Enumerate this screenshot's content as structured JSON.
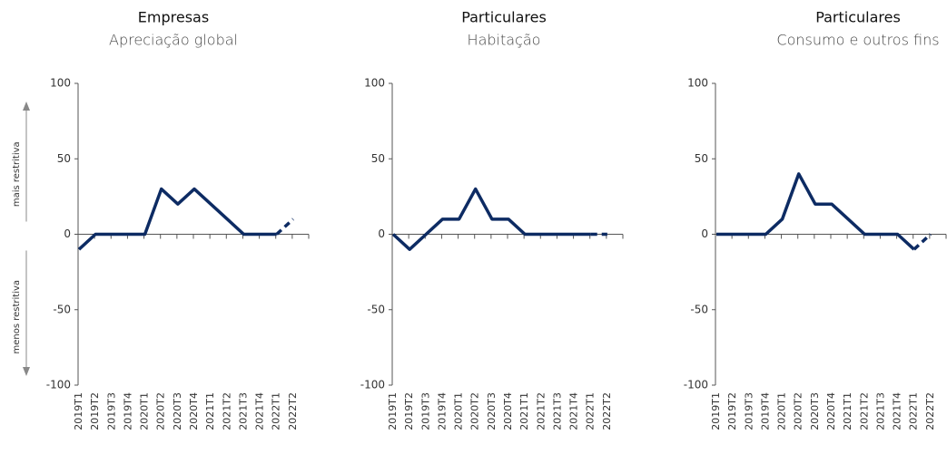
{
  "chart_data": [
    {
      "type": "line",
      "title": "Empresas",
      "subtitle": "Apreciação global",
      "categories": [
        "2019T1",
        "2019T2",
        "2019T3",
        "2019T4",
        "2020T1",
        "2020T2",
        "2020T3",
        "2020T4",
        "2021T1",
        "2021T2",
        "2021T3",
        "2021T4",
        "2022T1",
        "2022T2"
      ],
      "values": [
        -10,
        0,
        0,
        0,
        0,
        30,
        20,
        30,
        20,
        10,
        0,
        0,
        0,
        10
      ],
      "color": "#0d2b63",
      "dashed_from": 12,
      "ylim": [
        -100,
        100
      ],
      "yticks": [
        -100,
        -50,
        0,
        50,
        100
      ],
      "annotations": [
        "mais restritiva",
        "menos restritiva"
      ]
    },
    {
      "type": "line",
      "title": "Particulares",
      "subtitle": "Habitação",
      "categories": [
        "2019T1",
        "2019T2",
        "2019T3",
        "2019T4",
        "2020T1",
        "2020T2",
        "2020T3",
        "2020T4",
        "2021T1",
        "2021T2",
        "2021T3",
        "2021T4",
        "2022T1",
        "2022T2"
      ],
      "values": [
        0,
        -10,
        0,
        10,
        10,
        30,
        10,
        10,
        0,
        0,
        0,
        0,
        0,
        0
      ],
      "color": "#0d2b63",
      "dashed_from": 12,
      "ylim": [
        -100,
        100
      ],
      "yticks": [
        -100,
        -50,
        0,
        50,
        100
      ]
    },
    {
      "type": "line",
      "title": "Particulares",
      "subtitle": "Consumo e outros fins",
      "categories": [
        "2019T1",
        "2019T2",
        "2019T3",
        "2019T4",
        "2020T1",
        "2020T2",
        "2020T3",
        "2020T4",
        "2021T1",
        "2021T2",
        "2021T3",
        "2021T4",
        "2022T1",
        "2022T2"
      ],
      "values": [
        0,
        0,
        0,
        0,
        10,
        40,
        20,
        20,
        10,
        0,
        0,
        0,
        -10,
        0
      ],
      "color": "#0d2b63",
      "dashed_from": 12,
      "ylim": [
        -100,
        100
      ],
      "yticks": [
        -100,
        -50,
        0,
        50,
        100
      ]
    }
  ]
}
